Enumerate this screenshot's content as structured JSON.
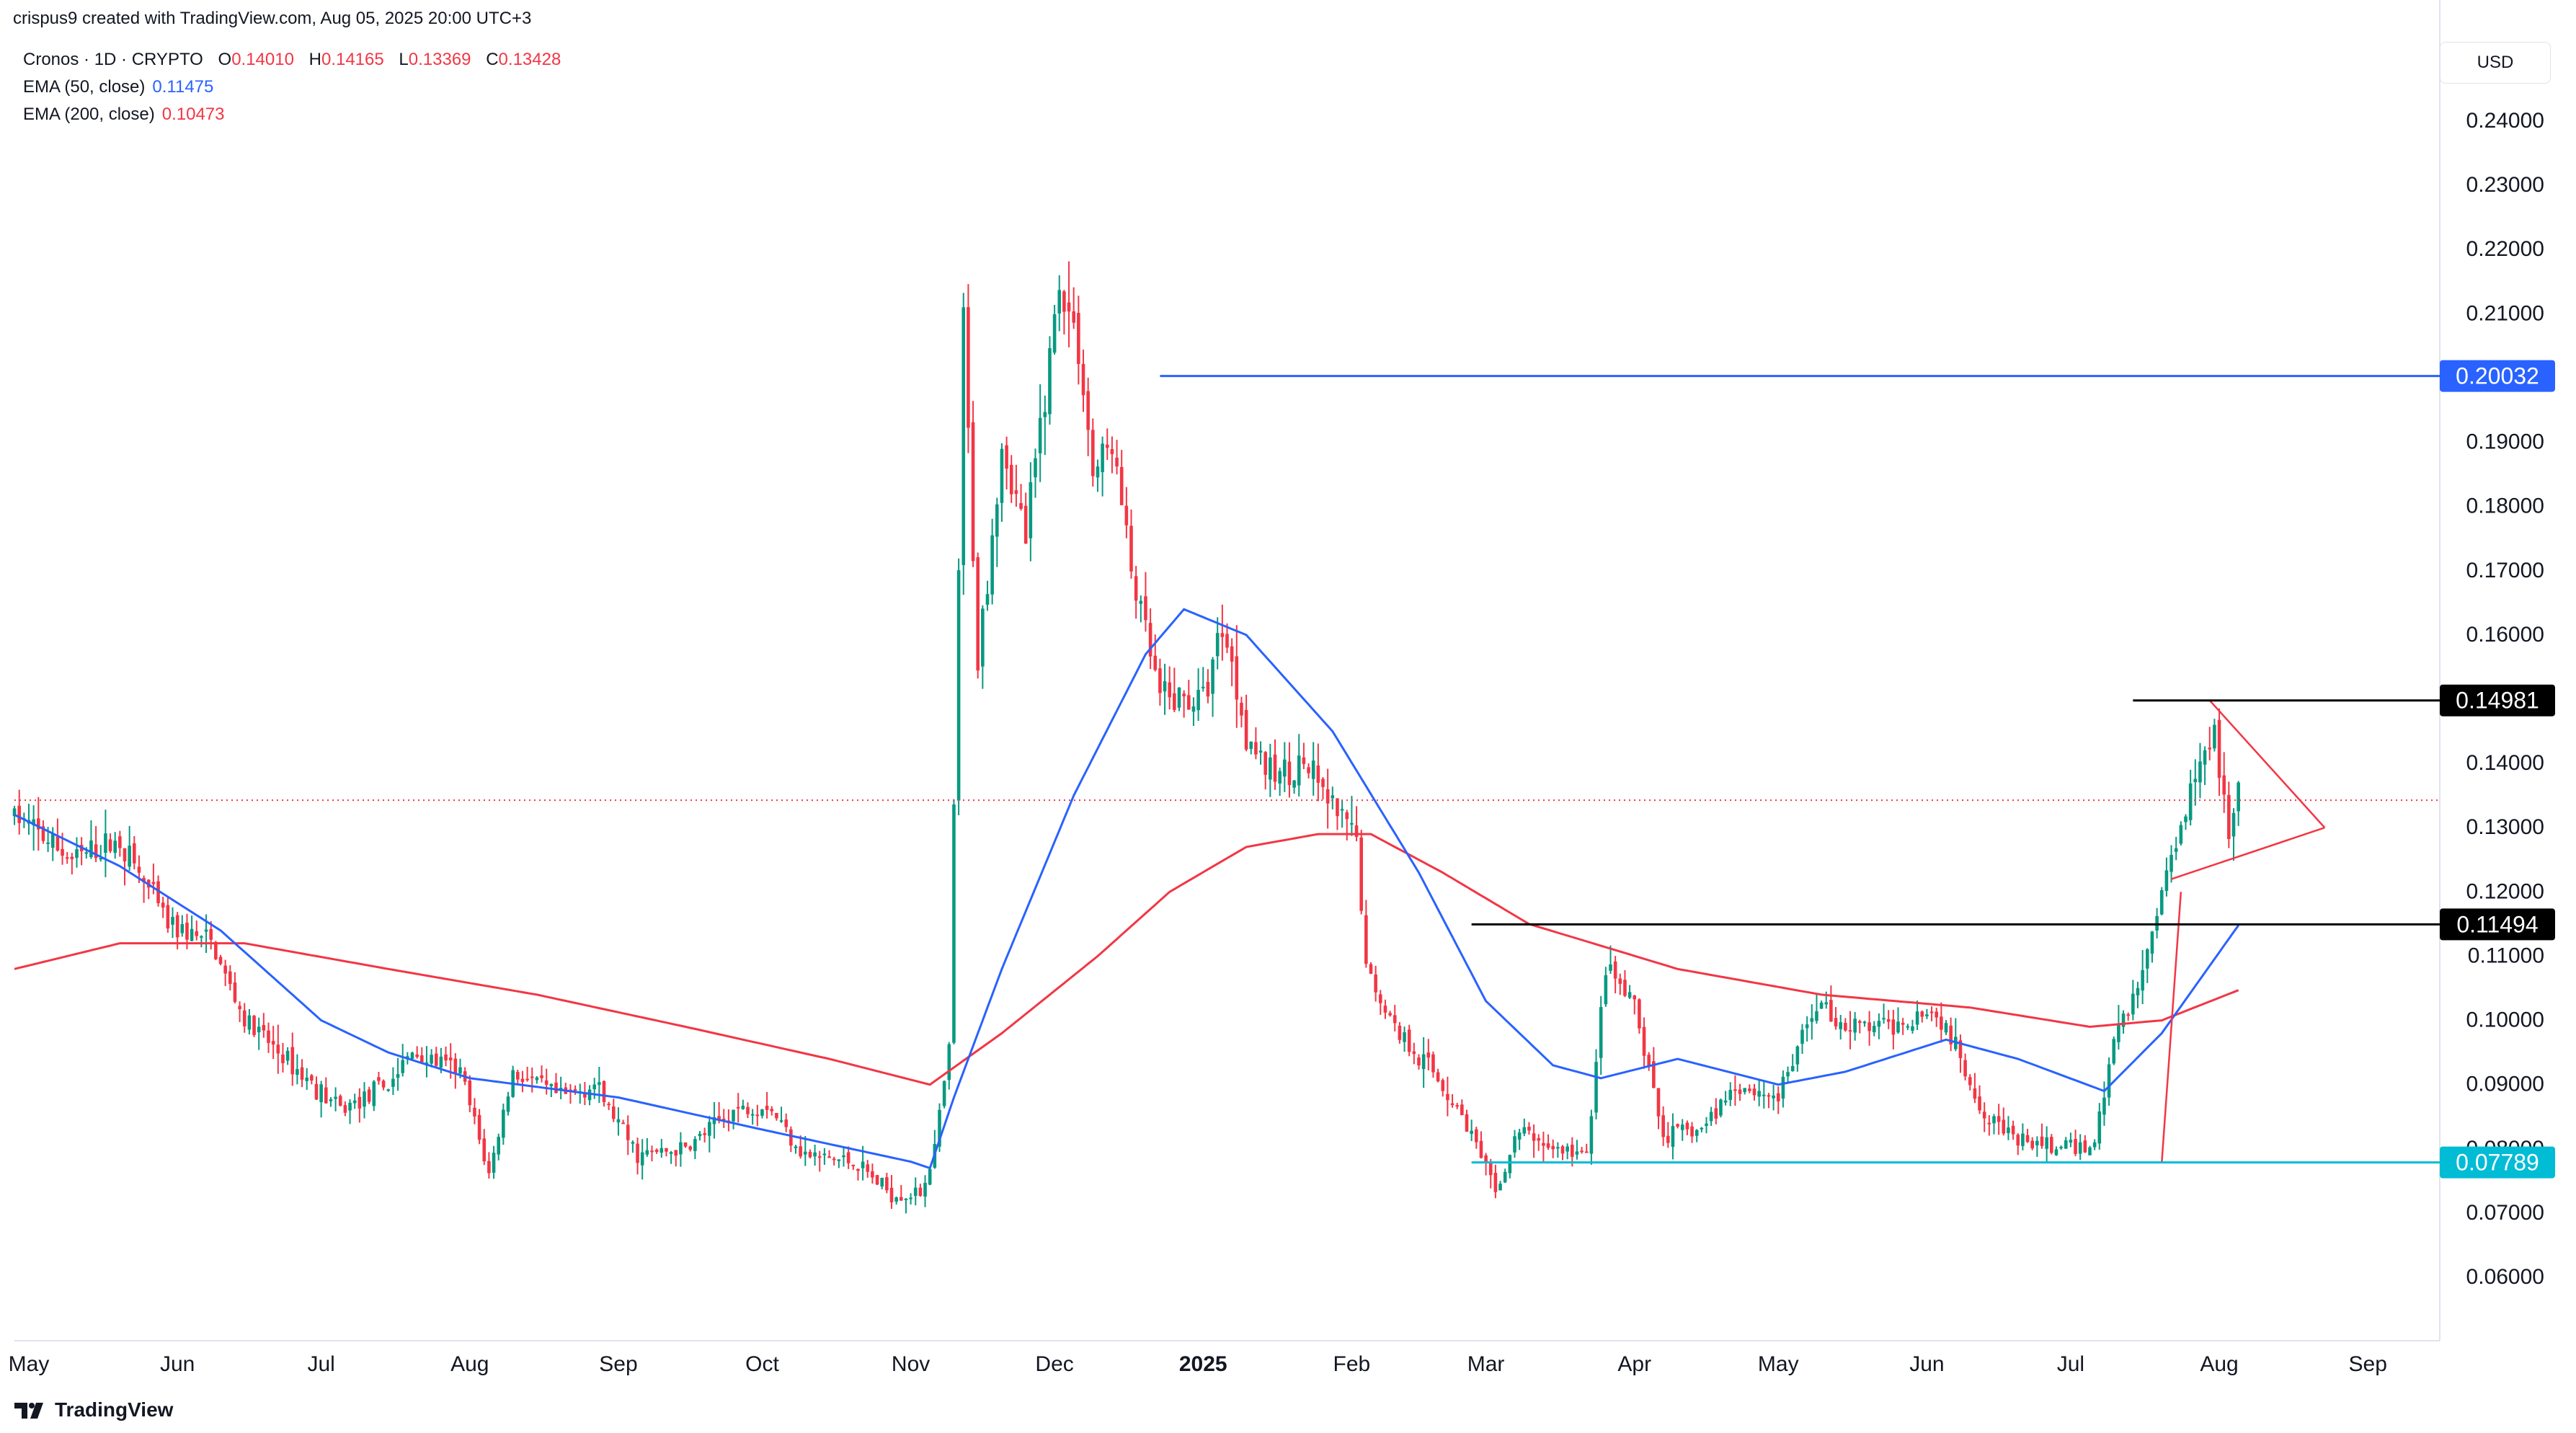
{
  "header": {
    "creator_text": "crispus9 created with TradingView.com, Aug 05, 2025 20:00 UTC+3"
  },
  "legend": {
    "symbol": "Cronos · 1D · CRYPTO",
    "ohlc": [
      {
        "label": "O",
        "value": "0.14010"
      },
      {
        "label": "H",
        "value": "0.14165"
      },
      {
        "label": "L",
        "value": "0.13369"
      },
      {
        "label": "C",
        "value": "0.13428"
      }
    ],
    "ema50": {
      "label": "EMA (50, close)",
      "value": "0.11475"
    },
    "ema200": {
      "label": "EMA (200, close)",
      "value": "0.10473"
    }
  },
  "currency_button": "USD",
  "footer": {
    "brand": "TradingView"
  },
  "colors": {
    "up": "#089981",
    "down": "#f23645",
    "ema50": "#2962ff",
    "ema200": "#f23645",
    "level_blue": "#2962ff",
    "level_cyan": "#00bcd4",
    "level_black": "#000000",
    "last_price": "#f23645",
    "axis_text": "#131722"
  },
  "chart_data": {
    "type": "candlestick",
    "title": "",
    "xlabel": "",
    "ylabel": "",
    "y_axis_ticks": [
      "0.06000",
      "0.07000",
      "0.08000",
      "0.09000",
      "0.10000",
      "0.11000",
      "0.12000",
      "0.13000",
      "0.14000",
      "0.15000",
      "0.16000",
      "0.17000",
      "0.18000",
      "0.19000",
      "0.20000",
      "0.21000",
      "0.22000",
      "0.23000",
      "0.24000"
    ],
    "ylim": [
      0.056,
      0.246
    ],
    "x_axis_ticks": [
      {
        "label": "May",
        "date": "2024-05-01"
      },
      {
        "label": "Jun",
        "date": "2024-06-01"
      },
      {
        "label": "Jul",
        "date": "2024-07-01"
      },
      {
        "label": "Aug",
        "date": "2024-08-01"
      },
      {
        "label": "Sep",
        "date": "2024-09-01"
      },
      {
        "label": "Oct",
        "date": "2024-10-01"
      },
      {
        "label": "Nov",
        "date": "2024-11-01"
      },
      {
        "label": "Dec",
        "date": "2024-12-01"
      },
      {
        "label": "2025",
        "date": "2025-01-01",
        "bold": true
      },
      {
        "label": "Feb",
        "date": "2025-02-01"
      },
      {
        "label": "Mar",
        "date": "2025-03-01"
      },
      {
        "label": "Apr",
        "date": "2025-04-01"
      },
      {
        "label": "May",
        "date": "2025-05-01"
      },
      {
        "label": "Jun",
        "date": "2025-06-01"
      },
      {
        "label": "Jul",
        "date": "2025-07-01"
      },
      {
        "label": "Aug",
        "date": "2025-08-01"
      },
      {
        "label": "Sep",
        "date": "2025-09-01"
      }
    ],
    "price_keypoints": [
      [
        "2024-04-28",
        0.132
      ],
      [
        "2024-05-10",
        0.125
      ],
      [
        "2024-05-20",
        0.128
      ],
      [
        "2024-05-30",
        0.115
      ],
      [
        "2024-06-08",
        0.112
      ],
      [
        "2024-06-15",
        0.1
      ],
      [
        "2024-06-25",
        0.093
      ],
      [
        "2024-07-05",
        0.086
      ],
      [
        "2024-07-15",
        0.09
      ],
      [
        "2024-07-20",
        0.095
      ],
      [
        "2024-07-30",
        0.092
      ],
      [
        "2024-08-05",
        0.076
      ],
      [
        "2024-08-10",
        0.092
      ],
      [
        "2024-08-20",
        0.088
      ],
      [
        "2024-08-27",
        0.09
      ],
      [
        "2024-09-05",
        0.079
      ],
      [
        "2024-09-15",
        0.08
      ],
      [
        "2024-09-25",
        0.086
      ],
      [
        "2024-10-02",
        0.087
      ],
      [
        "2024-10-10",
        0.079
      ],
      [
        "2024-10-20",
        0.078
      ],
      [
        "2024-10-28",
        0.073
      ],
      [
        "2024-11-03",
        0.073
      ],
      [
        "2024-11-06",
        0.08
      ],
      [
        "2024-11-09",
        0.095
      ],
      [
        "2024-11-12",
        0.208
      ],
      [
        "2024-11-15",
        0.156
      ],
      [
        "2024-11-20",
        0.19
      ],
      [
        "2024-11-25",
        0.175
      ],
      [
        "2024-12-02",
        0.215
      ],
      [
        "2024-12-06",
        0.205
      ],
      [
        "2024-12-09",
        0.185
      ],
      [
        "2024-12-13",
        0.19
      ],
      [
        "2024-12-17",
        0.17
      ],
      [
        "2024-12-23",
        0.15
      ],
      [
        "2025-01-01",
        0.15
      ],
      [
        "2025-01-05",
        0.162
      ],
      [
        "2025-01-10",
        0.145
      ],
      [
        "2025-01-15",
        0.138
      ],
      [
        "2025-01-22",
        0.14
      ],
      [
        "2025-01-28",
        0.133
      ],
      [
        "2025-02-02",
        0.128
      ],
      [
        "2025-02-04",
        0.108
      ],
      [
        "2025-02-10",
        0.099
      ],
      [
        "2025-02-18",
        0.092
      ],
      [
        "2025-02-25",
        0.084
      ],
      [
        "2025-03-03",
        0.073
      ],
      [
        "2025-03-08",
        0.083
      ],
      [
        "2025-03-15",
        0.08
      ],
      [
        "2025-03-22",
        0.079
      ],
      [
        "2025-03-26",
        0.108
      ],
      [
        "2025-04-01",
        0.102
      ],
      [
        "2025-04-07",
        0.082
      ],
      [
        "2025-04-15",
        0.083
      ],
      [
        "2025-04-22",
        0.09
      ],
      [
        "2025-05-01",
        0.088
      ],
      [
        "2025-05-09",
        0.103
      ],
      [
        "2025-05-15",
        0.099
      ],
      [
        "2025-05-25",
        0.099
      ],
      [
        "2025-06-01",
        0.102
      ],
      [
        "2025-06-05",
        0.099
      ],
      [
        "2025-06-12",
        0.087
      ],
      [
        "2025-06-20",
        0.081
      ],
      [
        "2025-07-01",
        0.08
      ],
      [
        "2025-07-06",
        0.081
      ],
      [
        "2025-07-10",
        0.097
      ],
      [
        "2025-07-15",
        0.105
      ],
      [
        "2025-07-20",
        0.12
      ],
      [
        "2025-07-28",
        0.142
      ],
      [
        "2025-07-31",
        0.145
      ],
      [
        "2025-08-03",
        0.128
      ],
      [
        "2025-08-05",
        0.1343
      ]
    ],
    "ema50_keypoints": [
      [
        "2024-04-28",
        0.132
      ],
      [
        "2024-05-20",
        0.124
      ],
      [
        "2024-06-10",
        0.114
      ],
      [
        "2024-07-01",
        0.1
      ],
      [
        "2024-07-15",
        0.095
      ],
      [
        "2024-08-01",
        0.091
      ],
      [
        "2024-09-01",
        0.088
      ],
      [
        "2024-10-01",
        0.083
      ],
      [
        "2024-11-01",
        0.078
      ],
      [
        "2024-11-05",
        0.077
      ],
      [
        "2024-11-10",
        0.088
      ],
      [
        "2024-11-20",
        0.108
      ],
      [
        "2024-12-05",
        0.135
      ],
      [
        "2024-12-20",
        0.157
      ],
      [
        "2024-12-28",
        0.164
      ],
      [
        "2025-01-10",
        0.16
      ],
      [
        "2025-01-28",
        0.145
      ],
      [
        "2025-02-15",
        0.123
      ],
      [
        "2025-03-01",
        0.103
      ],
      [
        "2025-03-15",
        0.093
      ],
      [
        "2025-03-25",
        0.091
      ],
      [
        "2025-04-10",
        0.094
      ],
      [
        "2025-05-01",
        0.09
      ],
      [
        "2025-05-15",
        0.092
      ],
      [
        "2025-06-05",
        0.097
      ],
      [
        "2025-06-20",
        0.094
      ],
      [
        "2025-07-08",
        0.089
      ],
      [
        "2025-07-20",
        0.098
      ],
      [
        "2025-08-05",
        0.1148
      ]
    ],
    "ema200_keypoints": [
      [
        "2024-04-28",
        0.108
      ],
      [
        "2024-05-20",
        0.112
      ],
      [
        "2024-06-15",
        0.112
      ],
      [
        "2024-07-15",
        0.108
      ],
      [
        "2024-08-15",
        0.104
      ],
      [
        "2024-09-15",
        0.099
      ],
      [
        "2024-10-15",
        0.094
      ],
      [
        "2024-11-05",
        0.09
      ],
      [
        "2024-11-20",
        0.098
      ],
      [
        "2024-12-10",
        0.11
      ],
      [
        "2024-12-25",
        0.12
      ],
      [
        "2025-01-10",
        0.127
      ],
      [
        "2025-01-25",
        0.129
      ],
      [
        "2025-02-05",
        0.129
      ],
      [
        "2025-02-20",
        0.123
      ],
      [
        "2025-03-10",
        0.115
      ],
      [
        "2025-04-10",
        0.108
      ],
      [
        "2025-05-10",
        0.104
      ],
      [
        "2025-06-10",
        0.102
      ],
      [
        "2025-07-05",
        0.099
      ],
      [
        "2025-07-20",
        0.1
      ],
      [
        "2025-08-05",
        0.1047
      ]
    ],
    "last_price": 0.13428,
    "horizontal_levels": [
      {
        "label": "0.20032",
        "value": 0.20032,
        "from": "2024-12-23",
        "color": "#2962ff"
      },
      {
        "label": "0.14981",
        "value": 0.14981,
        "from": "2025-07-14",
        "color": "#000000"
      },
      {
        "label": "0.11494",
        "value": 0.11494,
        "from": "2025-02-26",
        "color": "#000000"
      },
      {
        "label": "0.07789",
        "value": 0.07789,
        "from": "2025-02-26",
        "color": "#00bcd4"
      }
    ],
    "pattern_lines": [
      {
        "from": [
          "2025-07-30",
          0.14981
        ],
        "to": [
          "2025-08-23",
          0.13
        ]
      },
      {
        "from": [
          "2025-07-22",
          0.122
        ],
        "to": [
          "2025-08-23",
          0.13
        ]
      },
      {
        "from": [
          "2025-07-20",
          0.0778
        ],
        "to": [
          "2025-07-24",
          0.12
        ]
      }
    ]
  }
}
